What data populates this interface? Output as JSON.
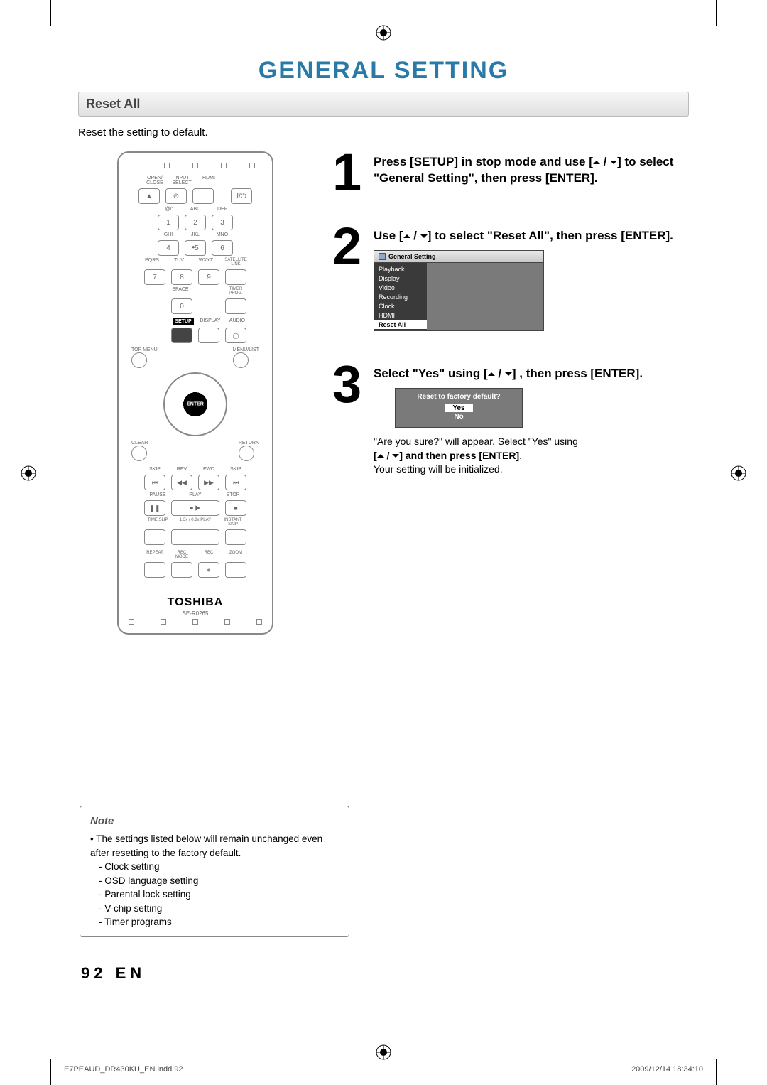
{
  "title_color": "#2a7aa8",
  "page_title": "GENERAL SETTING",
  "section_heading": "Reset All",
  "intro": "Reset the setting to default.",
  "remote": {
    "brand": "TOSHIBA",
    "model": "SE-R0265",
    "row1_labels": [
      "OPEN/\nCLOSE",
      "INPUT\nSELECT",
      "HDMI",
      ""
    ],
    "row2_labels": [
      ".@/:",
      "ABC",
      "DEF"
    ],
    "row3_labels": [
      "GHI",
      "JKL",
      "MNO"
    ],
    "row4_labels": [
      "PQRS",
      "TUV",
      "WXYZ"
    ],
    "nums": [
      "1",
      "2",
      "3",
      "4",
      "5",
      "6",
      "7",
      "8",
      "9",
      "0"
    ],
    "satellite": "SATELLITE\nLINK",
    "space": "SPACE",
    "timer": "TIMER\nPROG.",
    "func_labels": [
      "SETUP",
      "DISPLAY",
      "AUDIO"
    ],
    "top_menu": "TOP MENU",
    "menu_list": "MENU/LIST",
    "clear": "CLEAR",
    "return": "RETURN",
    "enter": "ENTER",
    "transport_labels": [
      "SKIP",
      "REV",
      "FWD",
      "SKIP"
    ],
    "play_labels": [
      "PAUSE",
      "PLAY",
      "STOP"
    ],
    "slip_row": [
      "TIME SLIP",
      "1.3x / 0.8x PLAY",
      "INSTANT SKIP"
    ],
    "bottom_row": [
      "REPEAT",
      "REC MODE",
      "REC",
      "ZOOM"
    ]
  },
  "steps": {
    "s1": {
      "num": "1",
      "text_a": "Press [SETUP] in stop mode and use [",
      "text_b": " / ",
      "text_c": "] to select \"General Setting\", then press [ENTER]."
    },
    "s2": {
      "num": "2",
      "text_a": "Use [",
      "text_b": " / ",
      "text_c": "] to select \"Reset All\", then press [ENTER].",
      "menu_title": "General Setting",
      "menu_items": [
        "Playback",
        "Display",
        "Video",
        "Recording",
        "Clock",
        "HDMI",
        "Reset All"
      ],
      "menu_selected_index": 6
    },
    "s3": {
      "num": "3",
      "text_a": "Select \"Yes\" using [",
      "text_b": " / ",
      "text_c": "] , then press [ENTER].",
      "dialog_q": "Reset to factory default?",
      "opt_yes": "Yes",
      "opt_no": "No",
      "after_a": "\"Are you sure?\" will appear. Select \"Yes\" using",
      "after_b": "[",
      "after_c": " / ",
      "after_d": "] and then press ",
      "after_e": "[ENTER]",
      "after_f": ".",
      "after_g": "Your setting will be initialized."
    }
  },
  "note": {
    "title": "Note",
    "lead": "The settings listed below will remain unchanged even after resetting to the factory default.",
    "items": [
      "- Clock setting",
      "- OSD language setting",
      "- Parental lock setting",
      "- V-chip setting",
      "- Timer programs"
    ]
  },
  "page_number": "92   EN",
  "footer_left": "E7PEAUD_DR430KU_EN.indd   92",
  "footer_right": "2009/12/14   18:34:10"
}
